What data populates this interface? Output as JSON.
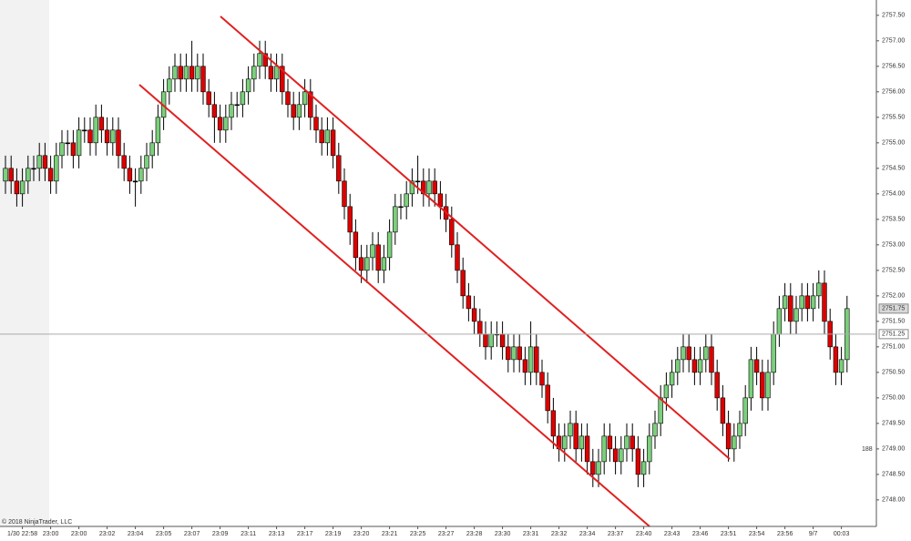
{
  "chart_data": {
    "type": "candlestick",
    "copyright": "© 2018 NinjaTrader, LLC",
    "bar_counter": "188",
    "up_color": "#7ccf7c",
    "down_color": "#dd0000",
    "ylim": [
      2747.48,
      2757.8
    ],
    "yticks": [
      {
        "value": 2748,
        "label": "2748.00"
      },
      {
        "value": 2748.5,
        "label": "2748.50"
      },
      {
        "value": 2749,
        "label": "2749.00"
      },
      {
        "value": 2749.5,
        "label": "2749.50"
      },
      {
        "value": 2750,
        "label": "2750.00"
      },
      {
        "value": 2750.5,
        "label": "2750.50"
      },
      {
        "value": 2751,
        "label": "2751.00"
      },
      {
        "value": 2751.5,
        "label": "2751.50"
      },
      {
        "value": 2752,
        "label": "2752.00"
      },
      {
        "value": 2752.5,
        "label": "2752.50"
      },
      {
        "value": 2753,
        "label": "2753.00"
      },
      {
        "value": 2753.5,
        "label": "2753.50"
      },
      {
        "value": 2754,
        "label": "2754.00"
      },
      {
        "value": 2754.5,
        "label": "2754.50"
      },
      {
        "value": 2755,
        "label": "2755.00"
      },
      {
        "value": 2755.5,
        "label": "2755.50"
      },
      {
        "value": 2756,
        "label": "2756.00"
      },
      {
        "value": 2756.5,
        "label": "2756.50"
      },
      {
        "value": 2757,
        "label": "2757.00"
      },
      {
        "value": 2757.5,
        "label": "2757.50"
      }
    ],
    "last_price": {
      "value": 2751.75,
      "label": "2751.75"
    },
    "reference_line": {
      "value": 2751.25,
      "label": "2751.25"
    },
    "categories": [
      null,
      null,
      null,
      "1/30 22:58",
      null,
      null,
      null,
      null,
      "23:00",
      null,
      null,
      null,
      null,
      "23:00",
      null,
      null,
      null,
      null,
      "23:02",
      null,
      null,
      null,
      null,
      "23:04",
      null,
      null,
      null,
      null,
      "23:05",
      null,
      null,
      null,
      null,
      "23:07",
      null,
      null,
      null,
      null,
      "23:09",
      null,
      null,
      null,
      null,
      "23:11",
      null,
      null,
      null,
      null,
      "23:13",
      null,
      null,
      null,
      null,
      "23:17",
      null,
      null,
      null,
      null,
      "23:19",
      null,
      null,
      null,
      null,
      "23:20",
      null,
      null,
      null,
      null,
      "23:21",
      null,
      null,
      null,
      null,
      "23:25",
      null,
      null,
      null,
      null,
      "23:27",
      null,
      null,
      null,
      null,
      "23:28",
      null,
      null,
      null,
      null,
      "23:30",
      null,
      null,
      null,
      null,
      "23:31",
      null,
      null,
      null,
      null,
      "23:32",
      null,
      null,
      null,
      null,
      "23:34",
      null,
      null,
      null,
      null,
      "23:37",
      null,
      null,
      null,
      null,
      "23:40",
      null,
      null,
      null,
      null,
      "23:43",
      null,
      null,
      null,
      null,
      "23:46",
      null,
      null,
      null,
      null,
      "23:51",
      null,
      null,
      null,
      null,
      "23:54",
      null,
      null,
      null,
      null,
      "23:56",
      null,
      null,
      null,
      null,
      "9/7",
      null,
      null,
      null,
      null,
      "00:03",
      null
    ],
    "open": [
      2754.25,
      2754.5,
      2754.25,
      2754.0,
      2754.25,
      2754.5,
      2754.5,
      2754.75,
      2754.5,
      2754.25,
      2754.75,
      2755.0,
      2755.0,
      2754.75,
      2755.25,
      2755.25,
      2755.0,
      2755.5,
      2755.25,
      2755.0,
      2755.25,
      2754.75,
      2754.5,
      2754.25,
      2754.25,
      2754.5,
      2754.75,
      2755.0,
      2755.5,
      2756.0,
      2756.25,
      2756.5,
      2756.25,
      2756.5,
      2756.25,
      2756.5,
      2756.0,
      2755.75,
      2755.5,
      2755.25,
      2755.5,
      2755.75,
      2755.75,
      2756.0,
      2756.25,
      2756.5,
      2756.75,
      2756.5,
      2756.25,
      2756.5,
      2756.0,
      2755.75,
      2755.5,
      2755.75,
      2756.0,
      2755.5,
      2755.25,
      2755.0,
      2755.25,
      2754.75,
      2754.25,
      2753.75,
      2753.25,
      2752.75,
      2752.5,
      2752.75,
      2753.0,
      2752.5,
      2752.75,
      2753.25,
      2753.75,
      2753.75,
      2754.0,
      2754.25,
      2754.25,
      2754.0,
      2754.25,
      2754.0,
      2753.75,
      2753.5,
      2753.0,
      2752.5,
      2752.0,
      2751.75,
      2751.5,
      2751.25,
      2751.0,
      2751.25,
      2751.25,
      2751.0,
      2750.75,
      2751.0,
      2750.75,
      2750.5,
      2751.0,
      2750.5,
      2750.25,
      2749.75,
      2749.25,
      2749.0,
      2749.25,
      2749.5,
      2749.0,
      2749.25,
      2748.75,
      2748.5,
      2748.75,
      2749.25,
      2749.0,
      2748.75,
      2749.0,
      2749.25,
      2749.0,
      2748.5,
      2748.75,
      2749.25,
      2749.5,
      2750.0,
      2750.25,
      2750.5,
      2750.75,
      2751.0,
      2750.75,
      2750.5,
      2750.75,
      2751.0,
      2750.5,
      2750.0,
      2749.5,
      2749.0,
      2749.25,
      2749.5,
      2750.0,
      2750.75,
      2750.5,
      2750.0,
      2750.5,
      2751.25,
      2751.75,
      2752.0,
      2751.5,
      2751.75,
      2752.0,
      2751.75,
      2752.0,
      2752.25,
      2751.5,
      2751.0,
      2750.5,
      2750.75
    ],
    "high": [
      2754.75,
      2754.75,
      2754.5,
      2754.5,
      2754.75,
      2754.75,
      2755.0,
      2755.0,
      2754.75,
      2755.0,
      2755.25,
      2755.25,
      2755.25,
      2755.5,
      2755.5,
      2755.5,
      2755.75,
      2755.75,
      2755.5,
      2755.5,
      2755.5,
      2755.0,
      2754.75,
      2754.5,
      2754.75,
      2755.0,
      2755.25,
      2755.75,
      2756.25,
      2756.5,
      2756.75,
      2756.75,
      2756.75,
      2757.0,
      2756.75,
      2756.75,
      2756.25,
      2756.0,
      2755.75,
      2755.75,
      2756.0,
      2756.0,
      2756.25,
      2756.5,
      2756.75,
      2757.0,
      2757.0,
      2756.75,
      2756.75,
      2756.75,
      2756.25,
      2756.0,
      2756.0,
      2756.25,
      2756.25,
      2755.75,
      2755.5,
      2755.5,
      2755.5,
      2755.0,
      2754.5,
      2754.0,
      2753.5,
      2753.0,
      2753.0,
      2753.25,
      2753.25,
      2753.0,
      2753.5,
      2754.0,
      2754.0,
      2754.25,
      2754.5,
      2754.75,
      2754.5,
      2754.5,
      2754.5,
      2754.25,
      2754.0,
      2753.75,
      2753.25,
      2752.75,
      2752.25,
      2752.0,
      2751.75,
      2751.5,
      2751.5,
      2751.5,
      2751.5,
      2751.25,
      2751.25,
      2751.25,
      2751.0,
      2751.5,
      2751.25,
      2750.75,
      2750.5,
      2750.0,
      2749.5,
      2749.5,
      2749.75,
      2749.75,
      2749.5,
      2749.5,
      2749.0,
      2749.0,
      2749.5,
      2749.5,
      2749.25,
      2749.25,
      2749.5,
      2749.5,
      2749.25,
      2749.0,
      2749.5,
      2749.75,
      2750.25,
      2750.5,
      2750.75,
      2751.0,
      2751.25,
      2751.25,
      2751.0,
      2751.0,
      2751.25,
      2751.25,
      2750.75,
      2750.25,
      2749.75,
      2749.5,
      2749.75,
      2750.25,
      2751.0,
      2751.0,
      2750.75,
      2750.75,
      2751.5,
      2752.0,
      2752.25,
      2752.25,
      2752.0,
      2752.25,
      2752.25,
      2752.25,
      2752.5,
      2752.5,
      2751.75,
      2751.25,
      2751.0,
      2752.0
    ],
    "low": [
      2754.0,
      2754.0,
      2753.75,
      2753.75,
      2754.0,
      2754.25,
      2754.25,
      2754.25,
      2754.0,
      2754.0,
      2754.5,
      2754.75,
      2754.5,
      2754.5,
      2755.0,
      2754.75,
      2754.75,
      2755.0,
      2754.75,
      2754.75,
      2754.5,
      2754.25,
      2754.0,
      2753.75,
      2754.0,
      2754.25,
      2754.5,
      2754.75,
      2755.25,
      2755.75,
      2756.0,
      2756.0,
      2756.0,
      2756.0,
      2756.0,
      2755.75,
      2755.5,
      2755.0,
      2755.0,
      2755.0,
      2755.25,
      2755.5,
      2755.5,
      2755.75,
      2756.0,
      2756.25,
      2756.25,
      2756.0,
      2756.0,
      2755.75,
      2755.5,
      2755.25,
      2755.25,
      2755.5,
      2755.25,
      2755.0,
      2754.75,
      2754.75,
      2754.5,
      2754.0,
      2753.5,
      2753.0,
      2752.5,
      2752.25,
      2752.25,
      2752.5,
      2752.25,
      2752.25,
      2752.5,
      2753.0,
      2753.5,
      2753.5,
      2753.75,
      2754.0,
      2753.75,
      2753.75,
      2753.75,
      2753.5,
      2753.25,
      2752.75,
      2752.25,
      2751.75,
      2751.5,
      2751.25,
      2751.0,
      2750.75,
      2750.75,
      2751.0,
      2750.75,
      2750.5,
      2750.5,
      2750.5,
      2750.25,
      2750.25,
      2750.25,
      2750.0,
      2749.5,
      2749.0,
      2748.75,
      2748.75,
      2749.0,
      2748.75,
      2748.75,
      2748.5,
      2748.25,
      2748.25,
      2748.5,
      2748.75,
      2748.5,
      2748.5,
      2748.75,
      2748.75,
      2748.25,
      2748.25,
      2748.5,
      2749.0,
      2749.25,
      2749.75,
      2750.0,
      2750.25,
      2750.5,
      2750.5,
      2750.25,
      2750.25,
      2750.5,
      2750.25,
      2749.75,
      2749.25,
      2748.75,
      2748.75,
      2749.0,
      2749.25,
      2749.75,
      2750.25,
      2749.75,
      2749.75,
      2750.25,
      2751.0,
      2751.5,
      2751.25,
      2751.25,
      2751.5,
      2751.5,
      2751.5,
      2751.75,
      2751.25,
      2750.75,
      2750.25,
      2750.25,
      2750.5
    ],
    "close": [
      2754.5,
      2754.25,
      2754.0,
      2754.25,
      2754.5,
      2754.5,
      2754.75,
      2754.5,
      2754.25,
      2754.75,
      2755.0,
      2755.0,
      2754.75,
      2755.25,
      2755.25,
      2755.0,
      2755.5,
      2755.25,
      2755.0,
      2755.25,
      2754.75,
      2754.5,
      2754.25,
      2754.25,
      2754.5,
      2754.75,
      2755.0,
      2755.5,
      2756.0,
      2756.25,
      2756.5,
      2756.25,
      2756.5,
      2756.25,
      2756.5,
      2756.0,
      2755.75,
      2755.5,
      2755.25,
      2755.5,
      2755.75,
      2755.75,
      2756.0,
      2756.25,
      2756.5,
      2756.75,
      2756.5,
      2756.25,
      2756.5,
      2756.0,
      2755.75,
      2755.5,
      2755.75,
      2756.0,
      2755.5,
      2755.25,
      2755.0,
      2755.25,
      2754.75,
      2754.25,
      2753.75,
      2753.25,
      2752.75,
      2752.5,
      2752.75,
      2753.0,
      2752.5,
      2752.75,
      2753.25,
      2753.75,
      2753.75,
      2754.0,
      2754.25,
      2754.25,
      2754.0,
      2754.25,
      2754.0,
      2753.75,
      2753.5,
      2753.0,
      2752.5,
      2752.0,
      2751.75,
      2751.5,
      2751.25,
      2751.0,
      2751.25,
      2751.25,
      2751.0,
      2750.75,
      2751.0,
      2750.75,
      2750.5,
      2751.0,
      2750.5,
      2750.25,
      2749.75,
      2749.25,
      2749.0,
      2749.25,
      2749.5,
      2749.0,
      2749.25,
      2748.75,
      2748.5,
      2748.75,
      2749.25,
      2749.0,
      2748.75,
      2749.0,
      2749.25,
      2749.0,
      2748.5,
      2748.75,
      2749.25,
      2749.5,
      2750.0,
      2750.25,
      2750.5,
      2750.75,
      2751.0,
      2750.75,
      2750.5,
      2750.75,
      2751.0,
      2750.5,
      2750.0,
      2749.5,
      2749.0,
      2749.25,
      2749.5,
      2750.0,
      2750.75,
      2750.5,
      2750.0,
      2750.5,
      2751.25,
      2751.75,
      2752.0,
      2751.5,
      2751.75,
      2752.0,
      2751.75,
      2752.0,
      2752.25,
      2751.5,
      2751.0,
      2750.5,
      2750.75,
      2751.75
    ]
  }
}
